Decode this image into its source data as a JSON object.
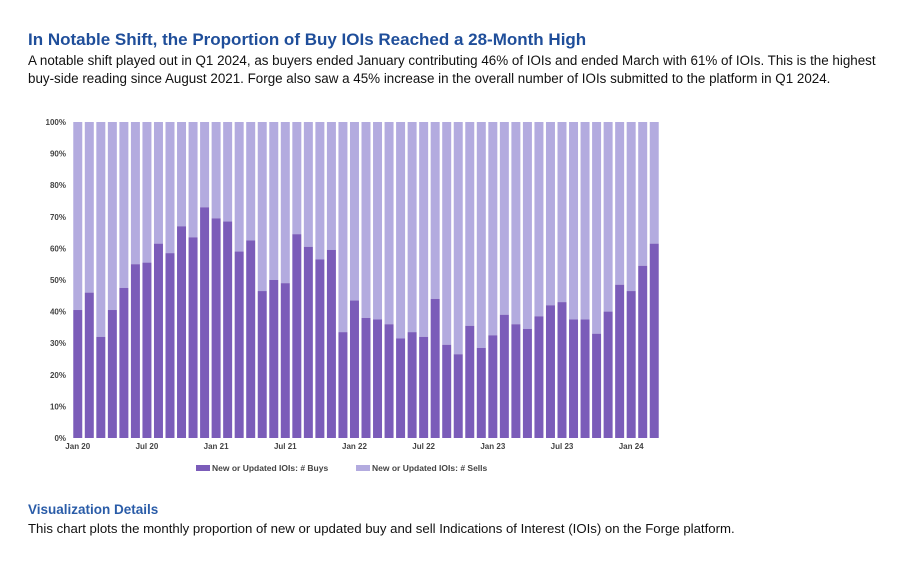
{
  "headline": "In Notable Shift, the Proportion of Buy IOIs Reached a 28-Month High",
  "intro": "A notable shift played out in Q1 2024, as buyers ended January contributing 46% of IOIs and ended March with 61% of IOIs. This is the highest buy-side reading since August 2021. Forge also saw a 45% increase in the overall number of IOIs submitted to the platform in Q1 2024.",
  "details": {
    "title": "Visualization Details",
    "text": "This chart plots the monthly proportion of new or updated buy and sell Indications of Interest (IOIs) on the Forge platform."
  },
  "chart_data": {
    "type": "bar",
    "stacked": true,
    "normalized_percent": true,
    "ylim": [
      0,
      100
    ],
    "yticks": [
      "0%",
      "10%",
      "20%",
      "30%",
      "40%",
      "50%",
      "60%",
      "70%",
      "80%",
      "90%",
      "100%"
    ],
    "xtick_labels": [
      {
        "index": 0,
        "label": "Jan 20"
      },
      {
        "index": 6,
        "label": "Jul 20"
      },
      {
        "index": 12,
        "label": "Jan 21"
      },
      {
        "index": 18,
        "label": "Jul 21"
      },
      {
        "index": 24,
        "label": "Jan 22"
      },
      {
        "index": 30,
        "label": "Jul 22"
      },
      {
        "index": 36,
        "label": "Jan 23"
      },
      {
        "index": 42,
        "label": "Jul 23"
      },
      {
        "index": 48,
        "label": "Jan 24"
      }
    ],
    "categories": [
      "2020-01",
      "2020-02",
      "2020-03",
      "2020-04",
      "2020-05",
      "2020-06",
      "2020-07",
      "2020-08",
      "2020-09",
      "2020-10",
      "2020-11",
      "2020-12",
      "2021-01",
      "2021-02",
      "2021-03",
      "2021-04",
      "2021-05",
      "2021-06",
      "2021-07",
      "2021-08",
      "2021-09",
      "2021-10",
      "2021-11",
      "2021-12",
      "2022-01",
      "2022-02",
      "2022-03",
      "2022-04",
      "2022-05",
      "2022-06",
      "2022-07",
      "2022-08",
      "2022-09",
      "2022-10",
      "2022-11",
      "2022-12",
      "2023-01",
      "2023-02",
      "2023-03",
      "2023-04",
      "2023-05",
      "2023-06",
      "2023-07",
      "2023-08",
      "2023-09",
      "2023-10",
      "2023-11",
      "2023-12",
      "2024-01",
      "2024-02",
      "2024-03"
    ],
    "series": [
      {
        "name": "New or Updated IOIs: # Buys",
        "color": "#7b5cb9",
        "values": [
          40.5,
          46,
          32,
          40.5,
          47.5,
          55,
          55.5,
          61.5,
          58.5,
          67,
          63.5,
          73,
          69.5,
          68.5,
          59,
          62.5,
          46.5,
          50,
          49,
          64.5,
          60.5,
          56.5,
          59.5,
          33.5,
          43.5,
          38,
          37.5,
          36,
          31.5,
          33.5,
          32,
          44,
          29.5,
          26.5,
          35.5,
          28.5,
          32.5,
          39,
          36,
          34.5,
          38.5,
          42,
          43,
          37.5,
          37.5,
          33,
          40,
          48.5,
          46.5,
          54.5,
          61.5
        ]
      },
      {
        "name": "New or Updated IOIs: # Sells",
        "color": "#b3abdf",
        "values": [
          59.5,
          54,
          68,
          59.5,
          52.5,
          45,
          44.5,
          38.5,
          41.5,
          33,
          36.5,
          27,
          30.5,
          31.5,
          41,
          37.5,
          53.5,
          50,
          51,
          35.5,
          39.5,
          43.5,
          40.5,
          66.5,
          56.5,
          62,
          62.5,
          64,
          68.5,
          66.5,
          68,
          56,
          70.5,
          73.5,
          64.5,
          71.5,
          67.5,
          61,
          64,
          65.5,
          61.5,
          58,
          57,
          62.5,
          62.5,
          67,
          60,
          51.5,
          53.5,
          45.5,
          38.5
        ]
      }
    ],
    "legend_position": "bottom-center"
  }
}
